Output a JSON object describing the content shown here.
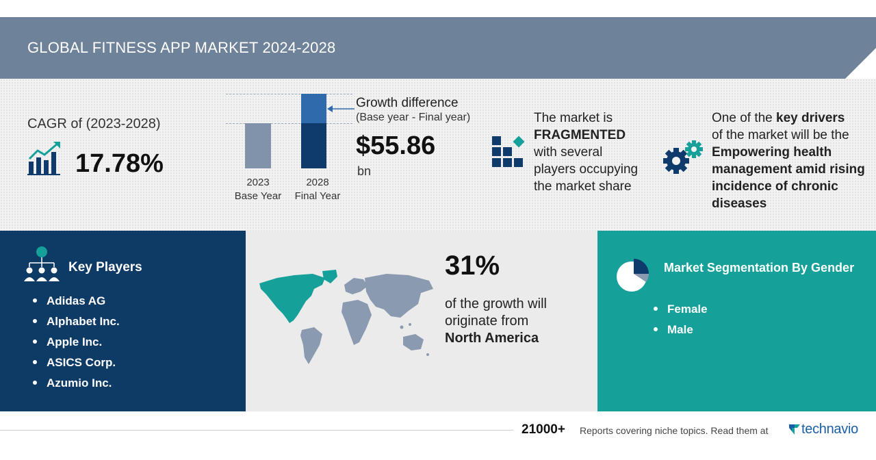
{
  "header": {
    "title": "GLOBAL FITNESS APP MARKET 2024-2028"
  },
  "cagr": {
    "label": "CAGR of (2023-2028)",
    "value": "17.78%"
  },
  "growth": {
    "bar_base_label": "2023",
    "bar_base_sub": "Base Year",
    "bar_final_label": "2028",
    "bar_final_sub": "Final Year",
    "title": "Growth difference",
    "subtitle": "(Base year - Final year)",
    "value": "$55.86",
    "unit": "bn"
  },
  "market_structure": {
    "line1": "The market is",
    "line2": "FRAGMENTED",
    "line3": "with several",
    "line4": "players occupying",
    "line5": "the market share"
  },
  "drivers": {
    "text_a": "One of the ",
    "text_b": "key drivers",
    "text_c": "of the market will be the",
    "text_d": "Empowering health management amid rising incidence of chronic diseases"
  },
  "key_players": {
    "title": "Key Players",
    "items": [
      "Adidas AG",
      "Alphabet Inc.",
      "Apple Inc.",
      "ASICS Corp.",
      "Azumio Inc."
    ]
  },
  "region": {
    "percent": "31%",
    "line1": "of the growth will",
    "line2": "originate from",
    "region_name": "North America"
  },
  "segmentation": {
    "title": "Market Segmentation By Gender",
    "items": [
      "Female",
      "Male"
    ]
  },
  "footer": {
    "count": "21000+",
    "text": "Reports covering niche topics. Read them at",
    "brand": "technavio"
  },
  "colors": {
    "banner": "#6e8299",
    "key_players_bg": "#0e3a66",
    "segmentation_bg": "#15a09a",
    "map_highlight": "#15a09a",
    "map_other": "#8a9ab0",
    "brand": "#1a5ea8"
  },
  "icons": [
    "bar-chart-growth-icon",
    "fragmented-blocks-icon",
    "gears-icon",
    "people-network-icon",
    "world-map",
    "pie-chart-icon",
    "technavio-logo"
  ]
}
